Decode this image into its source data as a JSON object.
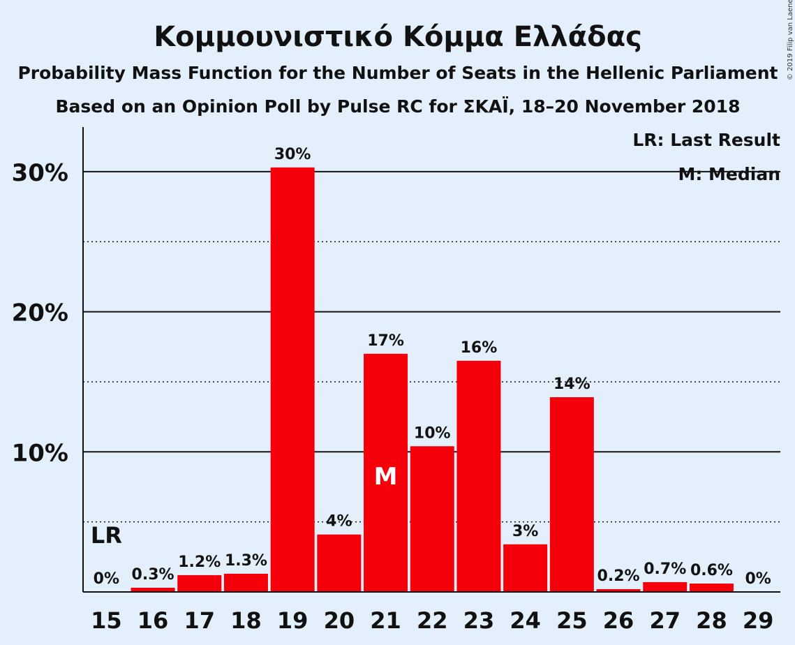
{
  "title": "Κομμουνιστικό Κόμμα Ελλάδας",
  "subtitle1": "Probability Mass Function for the Number of Seats in the Hellenic Parliament",
  "subtitle2": "Based on an Opinion Poll by Pulse RC for ΣΚΑΪ, 18–20 November 2018",
  "copyright": "© 2019 Filip van Laenen",
  "legend": {
    "last_result": "LR: Last Result",
    "median": "M: Median"
  },
  "markers": {
    "last_result_label": "LR",
    "last_result_seat": 15,
    "median_label": "M",
    "median_seat": 21
  },
  "colors": {
    "bar": "#f5000a",
    "background": "#e3f0fc"
  },
  "chart_data": {
    "type": "bar",
    "categories": [
      "15",
      "16",
      "17",
      "18",
      "19",
      "20",
      "21",
      "22",
      "23",
      "24",
      "25",
      "26",
      "27",
      "28",
      "29"
    ],
    "values": [
      0,
      0.3,
      1.2,
      1.3,
      30.3,
      4.1,
      17.0,
      10.4,
      16.5,
      3.4,
      13.9,
      0.2,
      0.7,
      0.6,
      0
    ],
    "data_labels": [
      "0%",
      "0.3%",
      "1.2%",
      "1.3%",
      "30%",
      "4%",
      "17%",
      "10%",
      "16%",
      "3%",
      "14%",
      "0.2%",
      "0.7%",
      "0.6%",
      "0%"
    ],
    "yticks": [
      {
        "value": 10,
        "label": "10%"
      },
      {
        "value": 20,
        "label": "20%"
      },
      {
        "value": 30,
        "label": "30%"
      }
    ],
    "minor_gridlines": [
      5,
      15,
      25
    ],
    "ylim": [
      0,
      33
    ],
    "grid": true,
    "legend_position": "top-right"
  }
}
